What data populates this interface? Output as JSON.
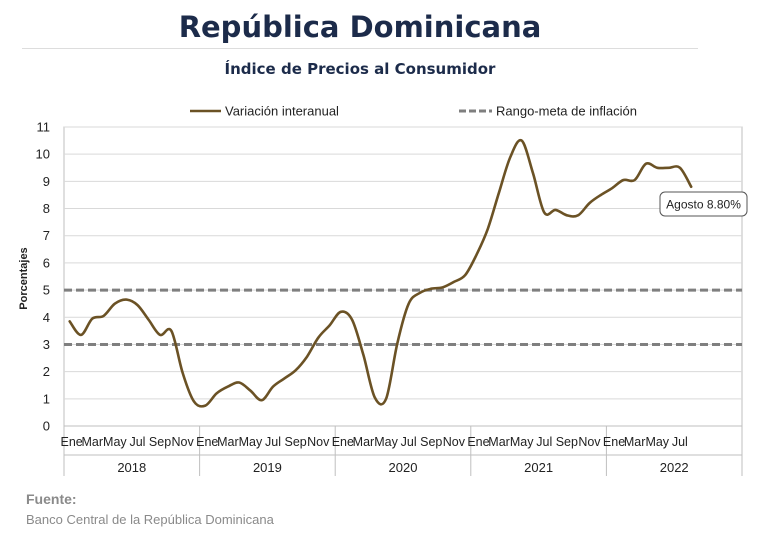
{
  "header": {
    "title": "República Dominicana",
    "subtitle": "Índice de Precios al Consumidor"
  },
  "source": {
    "label": "Fuente:",
    "text": "Banco Central de la República Dominicana"
  },
  "colors": {
    "line": "#6b5225",
    "band": "#7f7f7f",
    "title": "#1c2b4a",
    "grid": "#d9d9d9"
  },
  "chart_data": {
    "type": "line",
    "title": "Índice de Precios al Consumidor",
    "ylabel": "Porcentajes",
    "ylim": [
      0,
      11
    ],
    "yticks": [
      0,
      1,
      2,
      3,
      4,
      5,
      6,
      7,
      8,
      9,
      10,
      11
    ],
    "grid": true,
    "legend_position": "top",
    "month_ticks": [
      "Ene",
      "Mar",
      "May",
      "Jul",
      "Sep",
      "Nov"
    ],
    "month_ticks_2022": [
      "Ene",
      "Mar",
      "May",
      "Jul"
    ],
    "years": [
      "2018",
      "2019",
      "2020",
      "2021",
      "2022"
    ],
    "series": [
      {
        "name": "Variación interanual",
        "style": "solid",
        "x_start": "2018-01",
        "values": [
          3.85,
          3.35,
          3.95,
          4.05,
          4.5,
          4.65,
          4.45,
          3.9,
          3.35,
          3.5,
          1.95,
          0.9,
          0.75,
          1.2,
          1.45,
          1.6,
          1.3,
          0.95,
          1.45,
          1.75,
          2.05,
          2.55,
          3.25,
          3.7,
          4.2,
          3.9,
          2.6,
          1.05,
          1.0,
          3.05,
          4.5,
          4.9,
          5.05,
          5.1,
          5.3,
          5.55,
          6.3,
          7.25,
          8.6,
          9.9,
          10.5,
          9.3,
          7.85,
          7.95,
          7.75,
          7.75,
          8.2,
          8.5,
          8.75,
          9.05,
          9.05,
          9.65,
          9.5,
          9.5,
          9.5,
          8.8
        ]
      },
      {
        "name": "Rango-meta de inflación",
        "style": "dashed",
        "band": [
          3,
          5
        ]
      }
    ],
    "annotation": {
      "text": "Agosto 8.80%",
      "month": "2022-08",
      "value": 8.8
    }
  }
}
